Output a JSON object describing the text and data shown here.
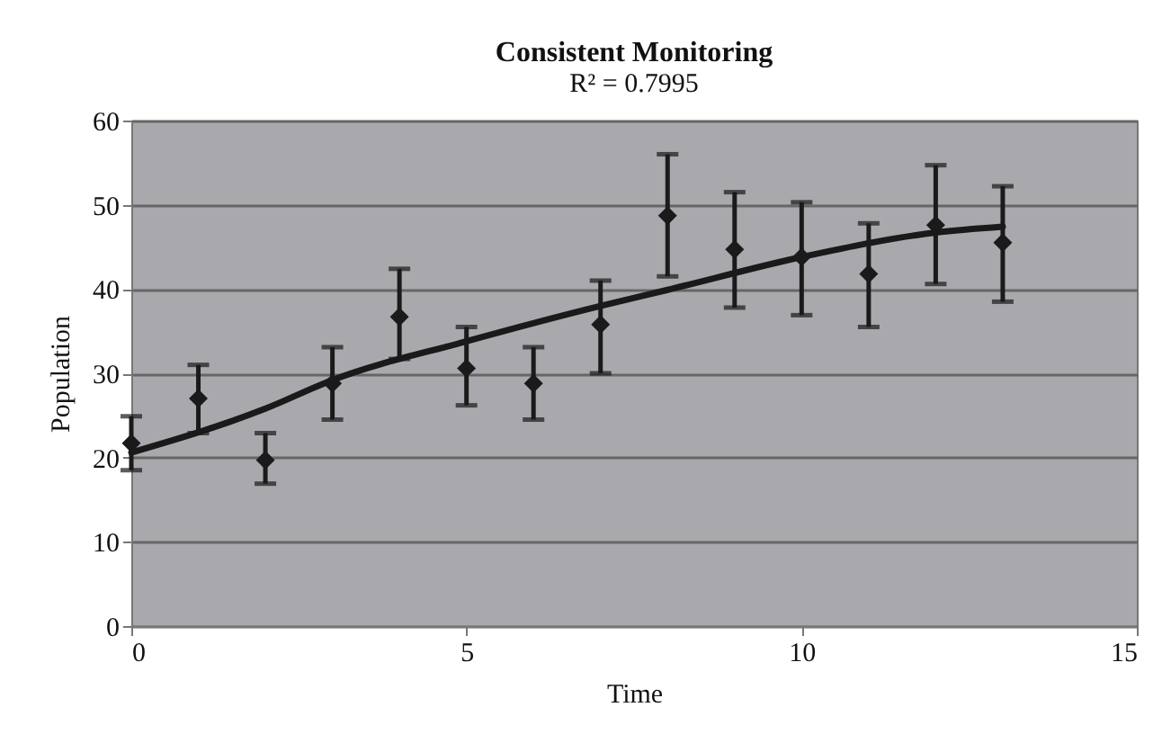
{
  "chart_data": {
    "type": "scatter",
    "title": "Consistent Monitoring",
    "subtitle": "R² = 0.7995",
    "xlabel": "Time",
    "ylabel": "Population",
    "x": [
      0,
      1,
      2,
      3,
      4,
      5,
      6,
      7,
      8,
      9,
      10,
      11,
      12,
      13
    ],
    "series": [
      {
        "color": "#1a1a1a",
        "marker": "diamond",
        "values": [
          21.7,
          27.0,
          19.7,
          28.8,
          36.7,
          30.6,
          28.8,
          35.8,
          48.7,
          44.7,
          43.8,
          41.8,
          47.6,
          45.5
        ],
        "errors": [
          [
            18.5,
            24.9
          ],
          [
            22.9,
            31.0
          ],
          [
            16.9,
            22.9
          ],
          [
            24.5,
            33.1
          ],
          [
            31.7,
            42.4
          ],
          [
            26.2,
            35.5
          ],
          [
            24.5,
            33.1
          ],
          [
            30.0,
            41.0
          ],
          [
            41.5,
            56.0
          ],
          [
            37.8,
            51.5
          ],
          [
            36.9,
            50.3
          ],
          [
            35.5,
            47.8
          ],
          [
            40.6,
            54.7
          ],
          [
            38.5,
            52.2
          ]
        ]
      },
      {
        "type": "line",
        "color": "#1a1a1a",
        "line_style": "solid",
        "x": [
          0,
          2,
          3,
          5,
          7,
          8,
          10,
          12,
          13
        ],
        "values": [
          20.6,
          25.8,
          29.2,
          33.8,
          38.0,
          39.9,
          43.8,
          46.7,
          47.4
        ]
      }
    ],
    "xlim": [
      0,
      15
    ],
    "xticks": [
      0,
      5,
      10,
      15
    ],
    "ylim": [
      0,
      60
    ],
    "yticks": [
      0,
      10,
      20,
      30,
      40,
      50,
      60
    ],
    "grid": "y"
  }
}
